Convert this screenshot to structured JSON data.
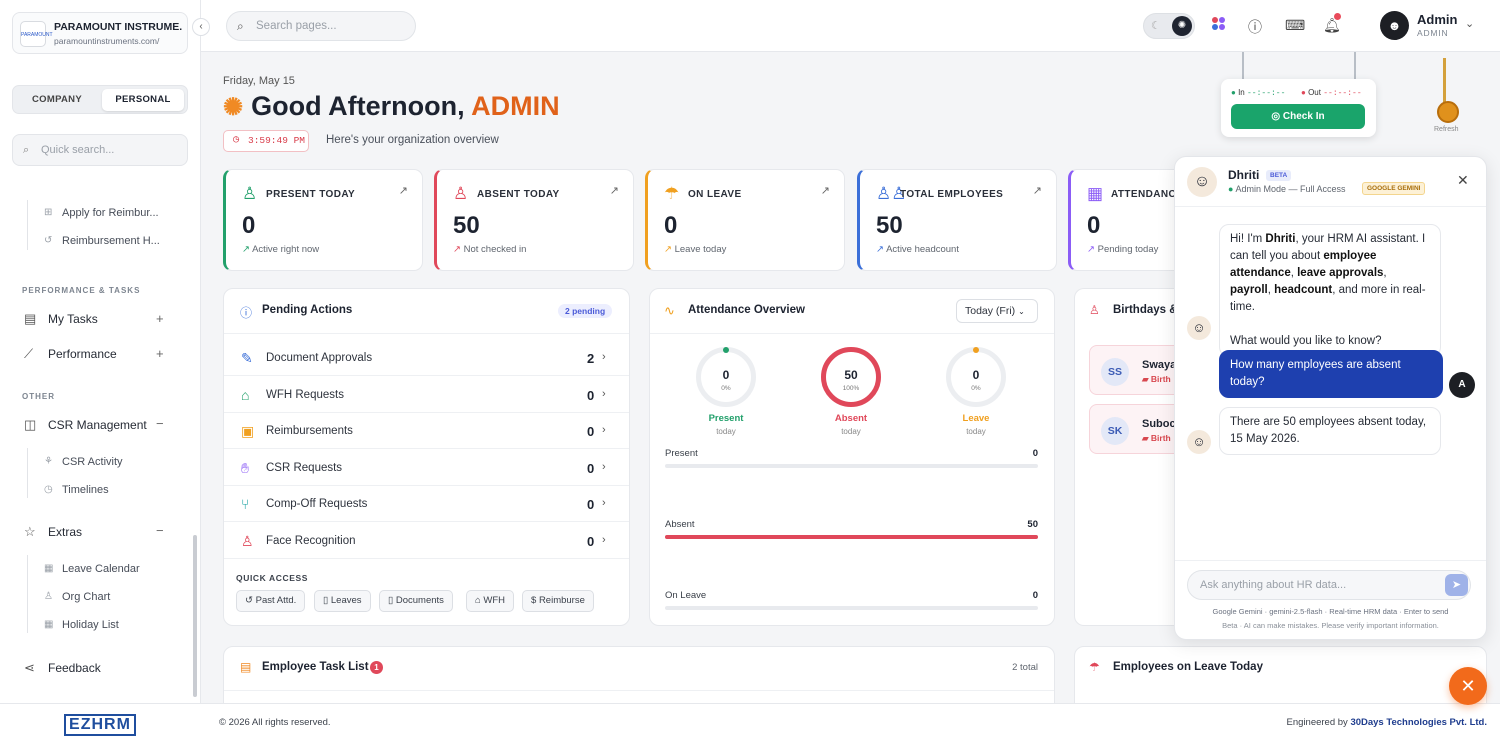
{
  "company": {
    "name": "PARAMOUNT INSTRUME...",
    "url": "paramountinstruments.com/",
    "logo_text": "PARAMOUNT"
  },
  "sidebar": {
    "toggle": [
      "COMPANY",
      "PERSONAL"
    ],
    "search_placeholder": "Quick search...",
    "reimb_items": [
      "Apply for Reimbur...",
      "Reimbursement H..."
    ],
    "section_perf": "PERFORMANCE & TASKS",
    "my_tasks": "My Tasks",
    "performance": "Performance",
    "section_other": "OTHER",
    "csr": "CSR Management",
    "csr_items": [
      "CSR Activity",
      "Timelines"
    ],
    "extras": "Extras",
    "extras_items": [
      "Leave Calendar",
      "Org Chart",
      "Holiday List"
    ],
    "feedback": "Feedback",
    "brand": "EZHRM"
  },
  "topbar": {
    "search_placeholder": "Search pages...",
    "user_name": "Admin",
    "user_role": "ADMIN"
  },
  "greeting": {
    "date": "Friday, May 15",
    "text": "Good Afternoon, ",
    "name": "ADMIN",
    "clock": "3:59:49 PM",
    "subtitle": "Here's your organization overview"
  },
  "stats": [
    {
      "title": "PRESENT TODAY",
      "value": "0",
      "sub": "Active right now",
      "color": "#22a06b"
    },
    {
      "title": "ABSENT TODAY",
      "value": "50",
      "sub": "Not checked in",
      "color": "#e0485a"
    },
    {
      "title": "ON LEAVE",
      "value": "0",
      "sub": "Leave today",
      "color": "#f0a020"
    },
    {
      "title": "TOTAL EMPLOYEES",
      "value": "50",
      "sub": "Active headcount",
      "color": "#3b6fd8"
    },
    {
      "title": "ATTENDANCE",
      "value": "0",
      "sub": "Pending today",
      "color": "#8b5cf6"
    }
  ],
  "pending": {
    "title": "Pending Actions",
    "badge": "2 pending",
    "rows": [
      {
        "label": "Document Approvals",
        "count": "2"
      },
      {
        "label": "WFH Requests",
        "count": "0"
      },
      {
        "label": "Reimbursements",
        "count": "0"
      },
      {
        "label": "CSR Requests",
        "count": "0"
      },
      {
        "label": "Comp-Off Requests",
        "count": "0"
      },
      {
        "label": "Face Recognition",
        "count": "0"
      }
    ],
    "quick_label": "QUICK ACCESS",
    "quick": [
      "Past Attd.",
      "Leaves",
      "Documents",
      "WFH",
      "Reimburse"
    ]
  },
  "attendance": {
    "title": "Attendance Overview",
    "filter": "Today (Fri)",
    "rings": [
      {
        "num": "0",
        "pct": "0%",
        "label": "Present",
        "sub": "today",
        "color": "#22a06b"
      },
      {
        "num": "50",
        "pct": "100%",
        "label": "Absent",
        "sub": "today",
        "color": "#e0485a"
      },
      {
        "num": "0",
        "pct": "0%",
        "label": "Leave",
        "sub": "today",
        "color": "#f0a020"
      }
    ],
    "bars": [
      {
        "label": "Present",
        "value": "0",
        "fraction": 0
      },
      {
        "label": "Absent",
        "value": "50",
        "fraction": 1
      },
      {
        "label": "On Leave",
        "value": "0",
        "fraction": 0
      }
    ]
  },
  "birthdays": {
    "title": "Birthdays &",
    "people": [
      {
        "initials": "SS",
        "name": "Swaya",
        "sub": "Birth"
      },
      {
        "initials": "SK",
        "name": "Suboc",
        "sub": "Birth"
      }
    ]
  },
  "tasks": {
    "title": "Employee Task List",
    "badge": "1",
    "total": "2 total"
  },
  "leave_today": {
    "title": "Employees on Leave Today"
  },
  "checkin": {
    "in_label": "In",
    "out_label": "Out",
    "in_time": "--:--:--",
    "out_time": "--:--:--",
    "button": "Check In",
    "refresh": "Refresh"
  },
  "chat": {
    "name": "Dhriti",
    "beta": "BETA",
    "mode": "Admin Mode",
    "access": "Full Access",
    "badge": "GOOGLE GEMINI",
    "placeholder": "Ask anything about HR data...",
    "footer1": "Google Gemini · gemini-2.5-flash · Real-time HRM data · Enter to send",
    "footer2": "Beta · AI can make mistakes. Please verify important information.",
    "user_question": "How many employees are absent today?",
    "reply": "There are 50 employees absent today, 15 May 2026.",
    "user_initial": "A"
  },
  "footer": {
    "copyright": "© 2026  All rights reserved.",
    "engineered": "Engineered by ",
    "company": "30Days Technologies Pvt. Ltd."
  }
}
